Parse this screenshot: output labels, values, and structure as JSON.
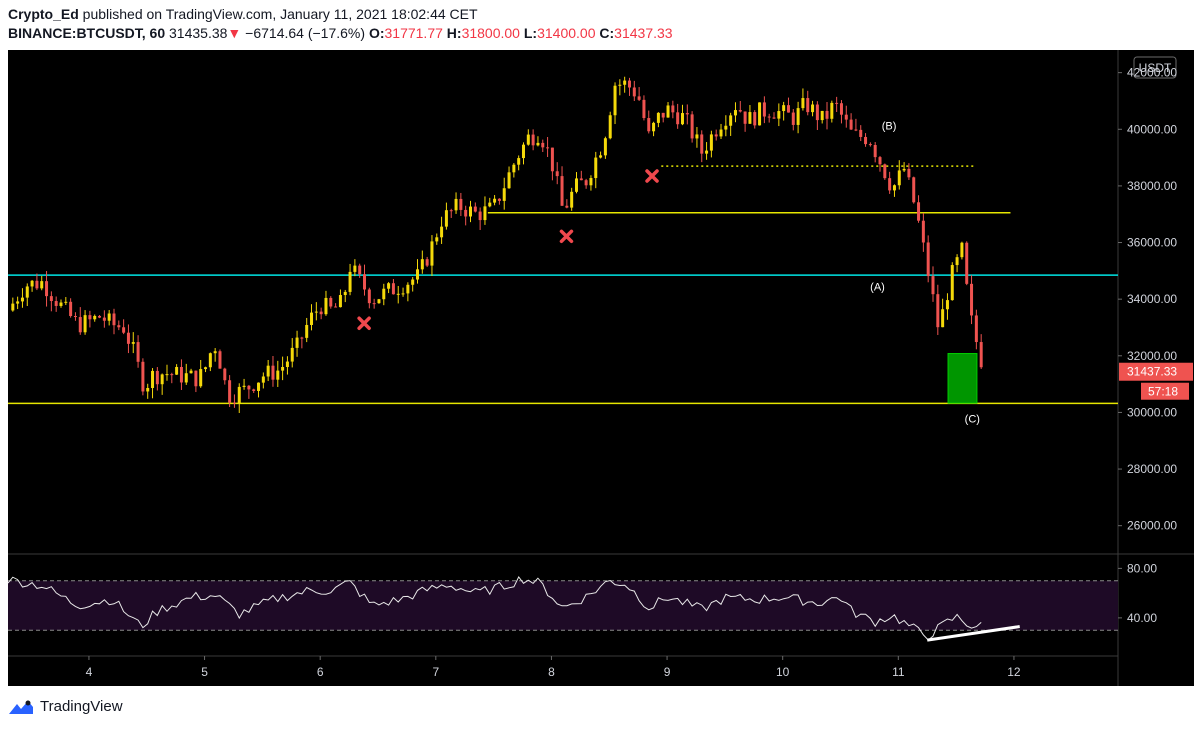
{
  "header": {
    "author": "Crypto_Ed",
    "published_text": " published on TradingView.com, January 11, 2021 18:02:44 CET",
    "symbol": "BINANCE:BTCUSDT, 60",
    "last": "31435.38",
    "arrow": "▼",
    "change": "−6714.64 (−17.6%)",
    "o_label": "O:",
    "o": "31771.77",
    "h_label": "H:",
    "h": "31800.00",
    "l_label": "L:",
    "l": "31400.00",
    "c_label": "C:",
    "c": "31437.33"
  },
  "footer": {
    "brand": "TradingView"
  },
  "colors": {
    "background": "#000000",
    "up": "#f5d90a",
    "down": "#ef5350",
    "support_line": "#e6e600",
    "resistance_line": "#00e5e5",
    "rsi_band": "#1e0a26",
    "target_box": "#00b000"
  },
  "chart_data": {
    "type": "candlestick",
    "currency_badge": "USDT",
    "price_ticks": [
      "42000.00",
      "40000.00",
      "38000.00",
      "36000.00",
      "34000.00",
      "32000.00",
      "30000.00",
      "28000.00",
      "26000.00"
    ],
    "price_ylim": [
      25000,
      42800
    ],
    "x_ticks": [
      "4",
      "5",
      "6",
      "7",
      "8",
      "9",
      "10",
      "11",
      "12"
    ],
    "x_domain_days": [
      3.3,
      12.9
    ],
    "last_price_label": "31437.33",
    "countdown_label": "57:18",
    "keypoints": [
      [
        3.3,
        33600
      ],
      [
        3.45,
        34500
      ],
      [
        3.6,
        34600
      ],
      [
        3.75,
        33800
      ],
      [
        3.9,
        33100
      ],
      [
        4.0,
        33200
      ],
      [
        4.1,
        33400
      ],
      [
        4.2,
        33100
      ],
      [
        4.3,
        33000
      ],
      [
        4.38,
        32200
      ],
      [
        4.48,
        30900
      ],
      [
        4.55,
        31300
      ],
      [
        4.65,
        31400
      ],
      [
        4.8,
        31300
      ],
      [
        4.95,
        31200
      ],
      [
        5.0,
        31500
      ],
      [
        5.05,
        32100
      ],
      [
        5.1,
        32400
      ],
      [
        5.2,
        30600
      ],
      [
        5.35,
        30800
      ],
      [
        5.5,
        31300
      ],
      [
        5.65,
        31500
      ],
      [
        5.8,
        32300
      ],
      [
        5.9,
        33200
      ],
      [
        6.0,
        33800
      ],
      [
        6.1,
        33600
      ],
      [
        6.2,
        33900
      ],
      [
        6.25,
        35200
      ],
      [
        6.35,
        34600
      ],
      [
        6.45,
        34000
      ],
      [
        6.55,
        34200
      ],
      [
        6.7,
        34500
      ],
      [
        6.85,
        34800
      ],
      [
        6.95,
        35700
      ],
      [
        7.05,
        36800
      ],
      [
        7.2,
        37300
      ],
      [
        7.35,
        37000
      ],
      [
        7.5,
        37200
      ],
      [
        7.6,
        38100
      ],
      [
        7.7,
        39000
      ],
      [
        7.8,
        39700
      ],
      [
        7.9,
        39900
      ],
      [
        8.0,
        38900
      ],
      [
        8.1,
        37100
      ],
      [
        8.2,
        37900
      ],
      [
        8.3,
        38200
      ],
      [
        8.45,
        39600
      ],
      [
        8.55,
        41600
      ],
      [
        8.65,
        41600
      ],
      [
        8.75,
        41200
      ],
      [
        8.85,
        39600
      ],
      [
        8.9,
        40300
      ],
      [
        9.0,
        40700
      ],
      [
        9.15,
        40400
      ],
      [
        9.3,
        39200
      ],
      [
        9.45,
        40200
      ],
      [
        9.6,
        40900
      ],
      [
        9.7,
        40300
      ],
      [
        9.8,
        40600
      ],
      [
        9.9,
        40700
      ],
      [
        10.1,
        40400
      ],
      [
        10.2,
        40900
      ],
      [
        10.35,
        40300
      ],
      [
        10.45,
        40900
      ],
      [
        10.6,
        39800
      ],
      [
        10.75,
        39700
      ],
      [
        10.85,
        38800
      ],
      [
        10.95,
        37900
      ],
      [
        11.05,
        38600
      ],
      [
        11.15,
        37200
      ],
      [
        11.25,
        35100
      ],
      [
        11.35,
        32900
      ],
      [
        11.45,
        34700
      ],
      [
        11.55,
        35700
      ],
      [
        11.62,
        33400
      ],
      [
        11.7,
        32100
      ],
      [
        11.75,
        31437
      ]
    ],
    "volatility_seed": 7,
    "horizontal_levels": [
      {
        "price": 34850,
        "color": "#00e5e5",
        "from_day": 3.3,
        "to_day": 12.9,
        "style": "solid"
      },
      {
        "price": 30320,
        "color": "#e6e600",
        "from_day": 3.3,
        "to_day": 12.9,
        "style": "solid"
      },
      {
        "price": 37050,
        "color": "#e6e600",
        "from_day": 7.45,
        "to_day": 11.97,
        "style": "solid"
      },
      {
        "price": 38700,
        "color": "#e6e600",
        "from_day": 8.95,
        "to_day": 11.65,
        "style": "dotted"
      }
    ],
    "x_markers": [
      {
        "day": 6.38,
        "price": 33150
      },
      {
        "day": 8.13,
        "price": 36220
      },
      {
        "day": 8.87,
        "price": 38350
      }
    ],
    "wave_labels": [
      {
        "text": "(A)",
        "day": 10.82,
        "price": 34300
      },
      {
        "text": "(B)",
        "day": 10.92,
        "price": 40000
      },
      {
        "text": "(C)",
        "day": 11.64,
        "price": 29650
      }
    ],
    "target_box": {
      "day_from": 11.43,
      "day_to": 11.68,
      "price_from": 30330,
      "price_to": 32080
    },
    "rsi": {
      "ticks": [
        "80.00",
        "40.00"
      ],
      "levels": [
        70,
        30
      ],
      "ylim": [
        10,
        90
      ],
      "keypoints": [
        [
          3.3,
          71
        ],
        [
          3.6,
          66
        ],
        [
          3.9,
          50
        ],
        [
          4.2,
          55
        ],
        [
          4.45,
          33
        ],
        [
          4.6,
          46
        ],
        [
          4.9,
          57
        ],
        [
          5.1,
          58
        ],
        [
          5.3,
          43
        ],
        [
          5.6,
          55
        ],
        [
          5.9,
          62
        ],
        [
          6.1,
          62
        ],
        [
          6.25,
          69
        ],
        [
          6.45,
          50
        ],
        [
          6.7,
          55
        ],
        [
          6.9,
          62
        ],
        [
          7.1,
          67
        ],
        [
          7.35,
          60
        ],
        [
          7.6,
          66
        ],
        [
          7.75,
          72
        ],
        [
          7.9,
          68
        ],
        [
          8.1,
          48
        ],
        [
          8.3,
          57
        ],
        [
          8.5,
          70
        ],
        [
          8.65,
          67
        ],
        [
          8.85,
          48
        ],
        [
          9.0,
          57
        ],
        [
          9.3,
          47
        ],
        [
          9.5,
          56
        ],
        [
          9.8,
          55
        ],
        [
          10.0,
          57
        ],
        [
          10.3,
          52
        ],
        [
          10.5,
          57
        ],
        [
          10.6,
          45
        ],
        [
          10.8,
          37
        ],
        [
          10.95,
          42
        ],
        [
          11.05,
          36
        ],
        [
          11.25,
          25
        ],
        [
          11.4,
          35
        ],
        [
          11.5,
          41
        ],
        [
          11.62,
          34
        ],
        [
          11.75,
          33
        ]
      ],
      "divergence_line": {
        "from": [
          11.25,
          22
        ],
        "to": [
          12.05,
          33
        ]
      }
    }
  }
}
